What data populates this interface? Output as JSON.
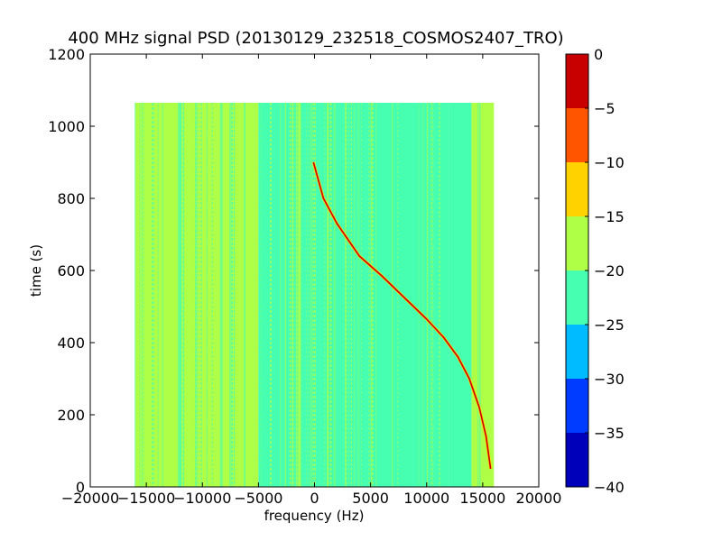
{
  "chart_data": {
    "type": "heatmap",
    "title": "400 MHz signal PSD (20130129_232518_COSMOS2407_TRO)",
    "xlabel": "frequency (Hz)",
    "ylabel": "time (s)",
    "xlim": [
      -20000,
      20000
    ],
    "ylim": [
      0,
      1200
    ],
    "xticks": [
      "−20000",
      "−15000",
      "−10000",
      "−5000",
      "0",
      "5000",
      "10000",
      "15000",
      "20000"
    ],
    "xtick_values": [
      -20000,
      -15000,
      -10000,
      -5000,
      0,
      5000,
      10000,
      15000,
      20000
    ],
    "yticks": [
      "0",
      "200",
      "400",
      "600",
      "800",
      "1000",
      "1200"
    ],
    "ytick_values": [
      0,
      200,
      400,
      600,
      800,
      1000,
      1200
    ],
    "data_extent": {
      "x": [
        -16000,
        16000
      ],
      "y": [
        0,
        1065
      ]
    },
    "background_bands": [
      {
        "x": [
          -16000,
          -5000
        ],
        "level": -17.5
      },
      {
        "x": [
          -5000,
          12000
        ],
        "level": -22.5
      },
      {
        "x": [
          12000,
          14000
        ],
        "level": -20
      },
      {
        "x": [
          14000,
          16000
        ],
        "level": -17.5
      }
    ],
    "signal_trace": {
      "x": [
        -100,
        800,
        2000,
        4000,
        6000,
        8000,
        10000,
        11500,
        12800,
        13800,
        14700,
        15300,
        15700
      ],
      "y": [
        900,
        800,
        730,
        640,
        585,
        525,
        465,
        415,
        360,
        300,
        220,
        140,
        50
      ],
      "level": -2
    },
    "colorbar": {
      "ticks": [
        "0",
        "−5",
        "−10",
        "−15",
        "−20",
        "−25",
        "−30",
        "−35",
        "−40"
      ],
      "tick_values": [
        0,
        -5,
        -10,
        -15,
        -20,
        -25,
        -30,
        -35,
        -40
      ],
      "levels": [
        {
          "range": [
            -40,
            -35
          ],
          "color": "#0000bb"
        },
        {
          "range": [
            -35,
            -30
          ],
          "color": "#003cff"
        },
        {
          "range": [
            -30,
            -25
          ],
          "color": "#00bbff"
        },
        {
          "range": [
            -25,
            -20
          ],
          "color": "#47ffb0"
        },
        {
          "range": [
            -20,
            -15
          ],
          "color": "#b0ff47"
        },
        {
          "range": [
            -15,
            -10
          ],
          "color": "#ffd200"
        },
        {
          "range": [
            -10,
            -5
          ],
          "color": "#ff5500"
        },
        {
          "range": [
            -5,
            0
          ],
          "color": "#c80000"
        }
      ]
    }
  }
}
